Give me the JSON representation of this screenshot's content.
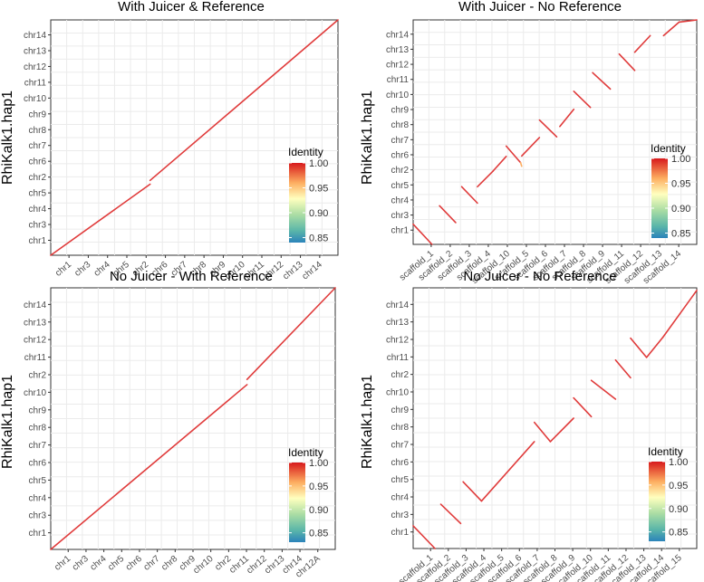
{
  "chart_data": [
    {
      "type": "scatter",
      "title": "With Juicer & Reference",
      "ylabel": "RhiKalk1.hap1",
      "x_ticks": [
        "chr1",
        "chr3",
        "chr4",
        "chr5",
        "chr2",
        "chr6",
        "chr7",
        "chr8",
        "chr9",
        "chr10",
        "chr11",
        "chr12",
        "chr13",
        "chr14"
      ],
      "y_ticks": [
        "chr1",
        "chr3",
        "chr4",
        "chr5",
        "chr2",
        "chr6",
        "chr7",
        "chr8",
        "chr9",
        "chr10",
        "chr11",
        "chr12",
        "chr13",
        "chr14"
      ],
      "segments": [
        {
          "x0": 0,
          "y0": 0,
          "x1": 0.346,
          "y1": 0.302,
          "identity": 1.0
        },
        {
          "x0": 0.346,
          "y0": 0.318,
          "x1": 1.0,
          "y1": 1.0,
          "identity": 1.0
        }
      ],
      "legend": {
        "title": "Identity",
        "ticks": [
          "1.00",
          "0.95",
          "0.90",
          "0.85"
        ],
        "range": [
          0.84,
          1.0
        ]
      },
      "grid": true
    },
    {
      "type": "scatter",
      "title": "With Juicer - No Reference",
      "ylabel": "RhiKalk1.hap1",
      "x_ticks": [
        "scaffold_1",
        "scaffold_2",
        "scaffold_3",
        "scaffold_4",
        "scaffold_10",
        "scaffold_5",
        "scaffold_6",
        "scaffold_7",
        "scaffold_8",
        "scaffold_9",
        "scaffold_11",
        "scaffold_12",
        "scaffold_13",
        "scaffold_14"
      ],
      "y_ticks": [
        "chr1",
        "chr3",
        "chr4",
        "chr5",
        "chr2",
        "chr6",
        "chr7",
        "chr8",
        "chr9",
        "chr10",
        "chr11",
        "chr12",
        "chr13",
        "chr14"
      ],
      "segments": [
        {
          "x0": 0.0,
          "y0": 0.09,
          "x1": 0.085,
          "y1": 0.0,
          "identity": 1.0
        },
        {
          "x0": 0.119,
          "y0": 0.172,
          "x1": 0.192,
          "y1": 0.097,
          "identity": 1.0
        },
        {
          "x0": 0.219,
          "y0": 0.257,
          "x1": 0.29,
          "y1": 0.184,
          "identity": 1.0
        },
        {
          "x0": 0.29,
          "y0": 0.257,
          "x1": 0.36,
          "y1": 0.326,
          "identity": 1.0
        },
        {
          "x0": 0.36,
          "y0": 0.326,
          "x1": 0.42,
          "y1": 0.392,
          "identity": 1.0
        },
        {
          "x0": 0.42,
          "y0": 0.438,
          "x1": 0.485,
          "y1": 0.364,
          "identity": 1.0
        },
        {
          "x0": 0.485,
          "y0": 0.364,
          "x1": 0.49,
          "y1": 0.348,
          "identity": 0.98
        },
        {
          "x0": 0.49,
          "y0": 0.394,
          "x1": 0.57,
          "y1": 0.476,
          "identity": 1.0
        },
        {
          "x0": 0.57,
          "y0": 0.554,
          "x1": 0.648,
          "y1": 0.479,
          "identity": 1.0
        },
        {
          "x0": 0.662,
          "y0": 0.525,
          "x1": 0.725,
          "y1": 0.602,
          "identity": 1.0
        },
        {
          "x0": 0.725,
          "y0": 0.682,
          "x1": 0.8,
          "y1": 0.61,
          "identity": 1.0
        },
        {
          "x0": 0.81,
          "y0": 0.765,
          "x1": 0.89,
          "y1": 0.692,
          "identity": 1.0
        },
        {
          "x0": 0.93,
          "y0": 0.848,
          "x1": 1.0,
          "y1": 0.775,
          "identity": 1.0
        },
        {
          "x0": 1.0,
          "y0": 0.856,
          "x1": 1.07,
          "y1": 0.93,
          "identity": 1.0
        },
        {
          "x0": 1.13,
          "y0": 0.93,
          "x1": 1.2,
          "y1": 0.99,
          "identity": 1.0
        },
        {
          "x0": 1.2,
          "y0": 0.99,
          "x1": 1.28,
          "y1": 1.0,
          "identity": 1.0
        }
      ],
      "legend": {
        "title": "Identity",
        "ticks": [
          "1.00",
          "0.95",
          "0.90",
          "0.85"
        ],
        "range": [
          0.84,
          1.0
        ]
      },
      "grid": true
    },
    {
      "type": "scatter",
      "title": "No Juicer - With Reference",
      "ylabel": "RhiKalk1.hap1",
      "x_ticks": [
        "chr1",
        "chr3",
        "chr4",
        "chr5",
        "chr6",
        "chr7",
        "chr8",
        "chr9",
        "chr10",
        "chr2",
        "chr11",
        "chr12",
        "chr13",
        "chr14",
        "chr12A"
      ],
      "y_ticks": [
        "chr1",
        "chr3",
        "chr4",
        "chr5",
        "chr6",
        "chr7",
        "chr8",
        "chr9",
        "chr10",
        "chr2",
        "chr11",
        "chr12",
        "chr13",
        "chr14"
      ],
      "segments": [
        {
          "x0": 0,
          "y0": 0,
          "x1": 0.69,
          "y1": 0.63,
          "identity": 1.0
        },
        {
          "x0": 0.69,
          "y0": 0.65,
          "x1": 1.0,
          "y1": 1.0,
          "identity": 1.0
        }
      ],
      "legend": {
        "title": "Identity",
        "ticks": [
          "1.00",
          "0.95",
          "0.90",
          "0.85"
        ],
        "range": [
          0.83,
          1.0
        ]
      },
      "grid": true
    },
    {
      "type": "scatter",
      "title": "No Juicer - No Reference",
      "ylabel": "RhiKalk1.hap1",
      "x_ticks": [
        "scaffold_1",
        "scaffold_2",
        "scaffold_3",
        "scaffold_4",
        "scaffold_5",
        "scaffold_6",
        "scaffold_7",
        "scaffold_8",
        "scaffold_9",
        "scaffold_10",
        "scaffold_11",
        "scaffold_12",
        "scaffold_13",
        "scaffold_14",
        "scaffold_15"
      ],
      "y_ticks": [
        "chr1",
        "chr3",
        "chr4",
        "chr5",
        "chr6",
        "chr7",
        "chr8",
        "chr9",
        "chr10",
        "chr2",
        "chr11",
        "chr12",
        "chr13",
        "chr14"
      ],
      "segments": [
        {
          "x0": 0.0,
          "y0": 0.087,
          "x1": 0.09,
          "y1": 0.0,
          "identity": 1.0
        },
        {
          "x0": 0.114,
          "y0": 0.17,
          "x1": 0.196,
          "y1": 0.096,
          "identity": 1.0
        },
        {
          "x0": 0.206,
          "y0": 0.256,
          "x1": 0.282,
          "y1": 0.182,
          "identity": 1.0
        },
        {
          "x0": 0.282,
          "y0": 0.182,
          "x1": 0.5,
          "y1": 0.41,
          "identity": 1.0
        },
        {
          "x0": 0.5,
          "y0": 0.484,
          "x1": 0.566,
          "y1": 0.41,
          "identity": 1.0
        },
        {
          "x0": 0.566,
          "y0": 0.41,
          "x1": 0.662,
          "y1": 0.5,
          "identity": 1.0
        },
        {
          "x0": 0.662,
          "y0": 0.578,
          "x1": 0.735,
          "y1": 0.506,
          "identity": 1.0
        },
        {
          "x0": 0.735,
          "y0": 0.645,
          "x1": 0.835,
          "y1": 0.573,
          "identity": 1.0
        },
        {
          "x0": 0.835,
          "y0": 0.723,
          "x1": 0.897,
          "y1": 0.655,
          "identity": 1.0
        },
        {
          "x0": 0.897,
          "y0": 0.807,
          "x1": 0.963,
          "y1": 0.733,
          "identity": 1.0
        },
        {
          "x0": 0.963,
          "y0": 0.733,
          "x1": 1.03,
          "y1": 0.81,
          "identity": 1.0
        },
        {
          "x0": 1.03,
          "y0": 0.81,
          "x1": 1.1,
          "y1": 0.9,
          "identity": 1.0
        },
        {
          "x0": 1.1,
          "y0": 0.9,
          "x1": 1.17,
          "y1": 0.99,
          "identity": 1.0
        }
      ],
      "legend": {
        "title": "Identity",
        "ticks": [
          "1.00",
          "0.95",
          "0.90",
          "0.85"
        ],
        "range": [
          0.83,
          1.0
        ]
      },
      "grid": true
    }
  ]
}
